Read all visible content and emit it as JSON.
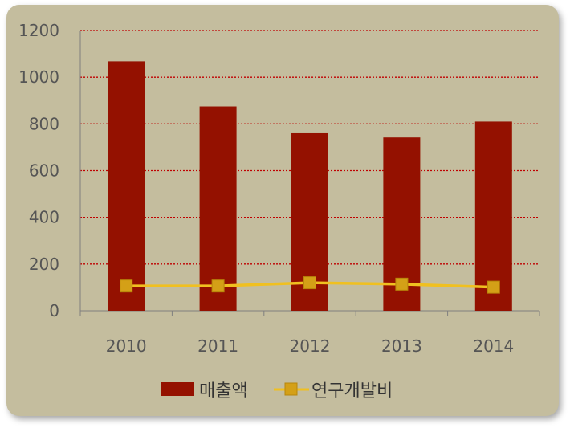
{
  "chart_data": {
    "type": "bar",
    "categories": [
      "2010",
      "2011",
      "2012",
      "2013",
      "2014"
    ],
    "series": [
      {
        "name": "매출액",
        "kind": "bar",
        "values": [
          1068,
          875,
          760,
          742,
          810
        ],
        "color": "#941100"
      },
      {
        "name": "연구개발비",
        "kind": "line",
        "values": [
          106,
          106,
          120,
          114,
          101
        ],
        "color": "#f0c020",
        "marker_color": "#d4a017"
      }
    ],
    "title": "",
    "xlabel": "",
    "ylabel": "",
    "ylim": [
      0,
      1200
    ],
    "yticks": [
      "0",
      "200",
      "400",
      "600",
      "800",
      "1000",
      "1200"
    ],
    "grid": true,
    "legend": "bottom"
  },
  "colors": {
    "background": "#c4bd9e",
    "grid": "#c00000"
  }
}
